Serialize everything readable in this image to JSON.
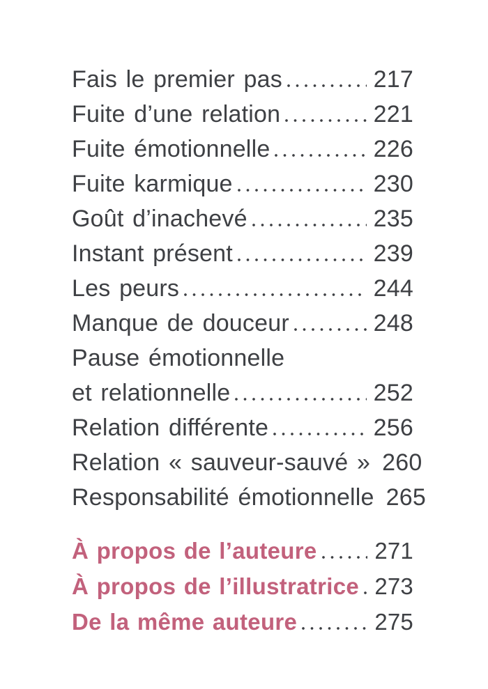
{
  "page": {
    "background": "#ffffff",
    "text_color": "#3e4044",
    "accent_color": "#c2617c"
  },
  "toc": {
    "entries": [
      {
        "title": "Fais le premier pas",
        "page": "217"
      },
      {
        "title": "Fuite d’une relation",
        "page": "221"
      },
      {
        "title": "Fuite émotionnelle",
        "page": "226"
      },
      {
        "title": "Fuite karmique",
        "page": "230"
      },
      {
        "title": "Goût d’inachevé",
        "page": "235"
      },
      {
        "title": "Instant présent",
        "page": "239"
      },
      {
        "title": "Les peurs",
        "page": "244"
      },
      {
        "title": "Manque de douceur",
        "page": "248"
      },
      {
        "title": "Pause émotionnelle",
        "title_line2": "et relationnelle",
        "page": "252"
      },
      {
        "title": "Relation différente",
        "page": "256"
      },
      {
        "title": "Relation « sauveur-sauvé »",
        "page": "260"
      },
      {
        "title": "Responsabilité émotionnelle",
        "page": "265"
      }
    ],
    "accent_entries": [
      {
        "title": "À propos de l’auteure",
        "page": "271"
      },
      {
        "title": "À propos de l’illustratrice",
        "page": "273"
      },
      {
        "title": "De la même auteure",
        "page": "275"
      }
    ]
  }
}
